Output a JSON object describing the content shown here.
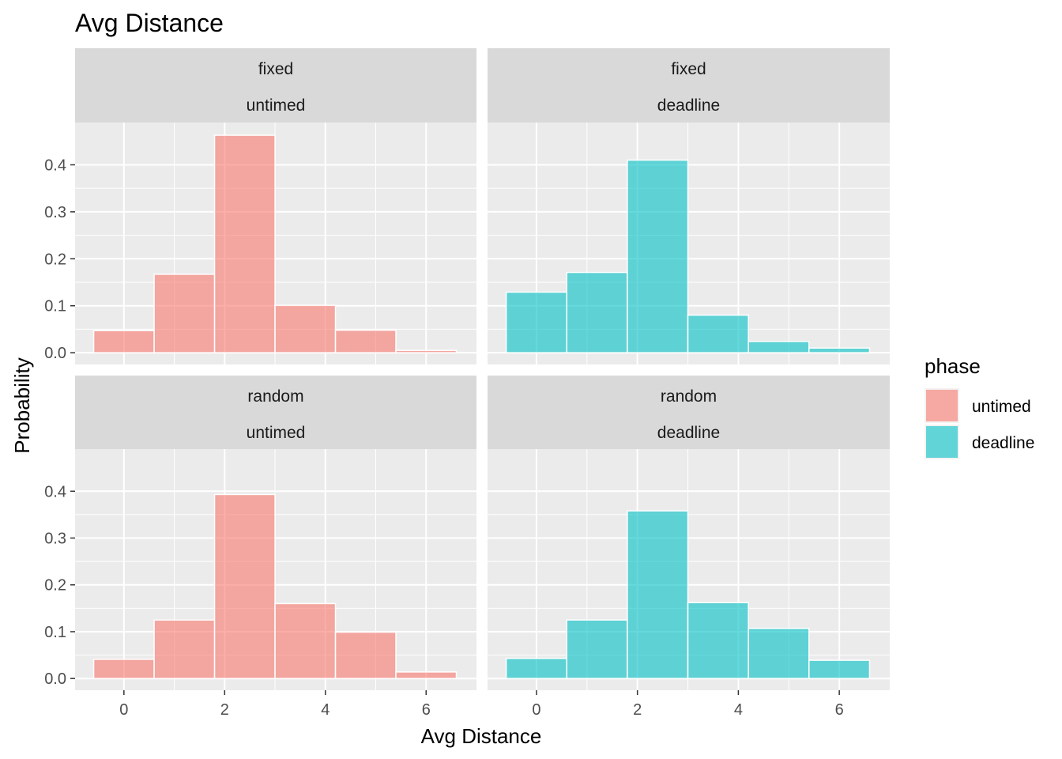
{
  "chart_data": {
    "type": "bar",
    "title": "Avg Distance",
    "xlabel": "Avg Distance",
    "ylabel": "Probability",
    "xlim": [
      -0.97,
      7.0
    ],
    "ylim": [
      -0.025,
      0.49
    ],
    "x_ticks": [
      "0",
      "2",
      "4",
      "6"
    ],
    "y_ticks": [
      "0.0",
      "0.1",
      "0.2",
      "0.3",
      "0.4"
    ],
    "bin_centers": [
      0,
      1.2,
      2.4,
      3.6,
      4.8,
      6.0
    ],
    "bin_width": 1.2,
    "grid": true,
    "legend": {
      "title": "phase",
      "position": "right",
      "entries": [
        {
          "label": "untimed",
          "color": "#F8766D"
        },
        {
          "label": "deadline",
          "color": "#00BFC4"
        }
      ]
    },
    "panels": [
      {
        "row_label": "fixed",
        "col_label": "untimed",
        "phase": "untimed",
        "values": [
          0.047,
          0.167,
          0.463,
          0.101,
          0.048,
          0.005
        ]
      },
      {
        "row_label": "fixed",
        "col_label": "deadline",
        "phase": "deadline",
        "values": [
          0.129,
          0.171,
          0.41,
          0.08,
          0.024,
          0.01
        ]
      },
      {
        "row_label": "random",
        "col_label": "untimed",
        "phase": "untimed",
        "values": [
          0.041,
          0.125,
          0.393,
          0.16,
          0.099,
          0.014
        ]
      },
      {
        "row_label": "random",
        "col_label": "deadline",
        "phase": "deadline",
        "values": [
          0.043,
          0.125,
          0.358,
          0.162,
          0.107,
          0.039
        ]
      }
    ]
  }
}
